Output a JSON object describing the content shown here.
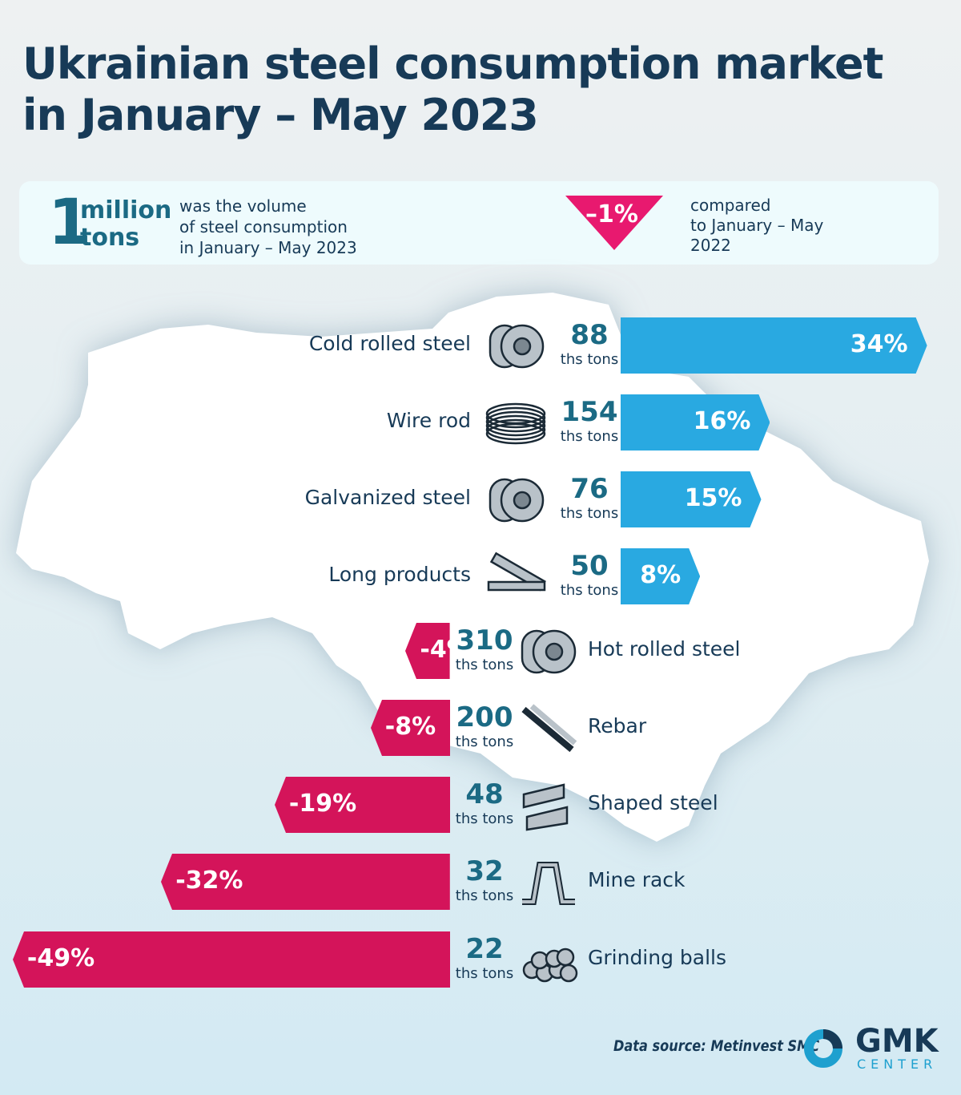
{
  "title_line1": "Ukrainian steel consumption market",
  "title_line2": "in January – May 2023",
  "summary": {
    "value": "1",
    "unit_line1": "million",
    "unit_line2": "tons",
    "desc_line1": "was the volume",
    "desc_line2": "of steel consumption",
    "desc_line3": "in January – May 2023",
    "change": "–1%",
    "compare_line1": "compared",
    "compare_line2": "to January – May",
    "compare_line3": "2022"
  },
  "colors": {
    "positive": "#29a9e1",
    "negative": "#d4145a",
    "title": "#173a57",
    "number": "#1b6a84"
  },
  "chart_data": {
    "type": "bar",
    "title": "Ukrainian steel consumption market in January – May 2023",
    "unit": "ths tons",
    "change_unit": "%",
    "categories": [
      "Cold rolled steel",
      "Wire rod",
      "Galvanized steel",
      "Long products",
      "Hot rolled steel",
      "Rebar",
      "Shaped steel",
      "Mine rack",
      "Grinding balls"
    ],
    "volumes": [
      88,
      154,
      76,
      50,
      310,
      200,
      48,
      32,
      22
    ],
    "changes": [
      34,
      16,
      15,
      8,
      -4,
      -8,
      -19,
      -32,
      -49
    ],
    "change_labels": [
      "34%",
      "16%",
      "15%",
      "8%",
      "-4%",
      "-8%",
      "-19%",
      "-32%",
      "-49%"
    ],
    "icons": [
      "coil-icon",
      "wire-coil-icon",
      "coil-icon",
      "long-products-icon",
      "hot-rolled-coil-icon",
      "rebar-icon",
      "shaped-steel-icon",
      "mine-rack-icon",
      "grinding-balls-icon"
    ]
  },
  "footer": {
    "source": "Data source: Metinvest SMC",
    "logo_main": "GMK",
    "logo_sub": "CENTER"
  }
}
